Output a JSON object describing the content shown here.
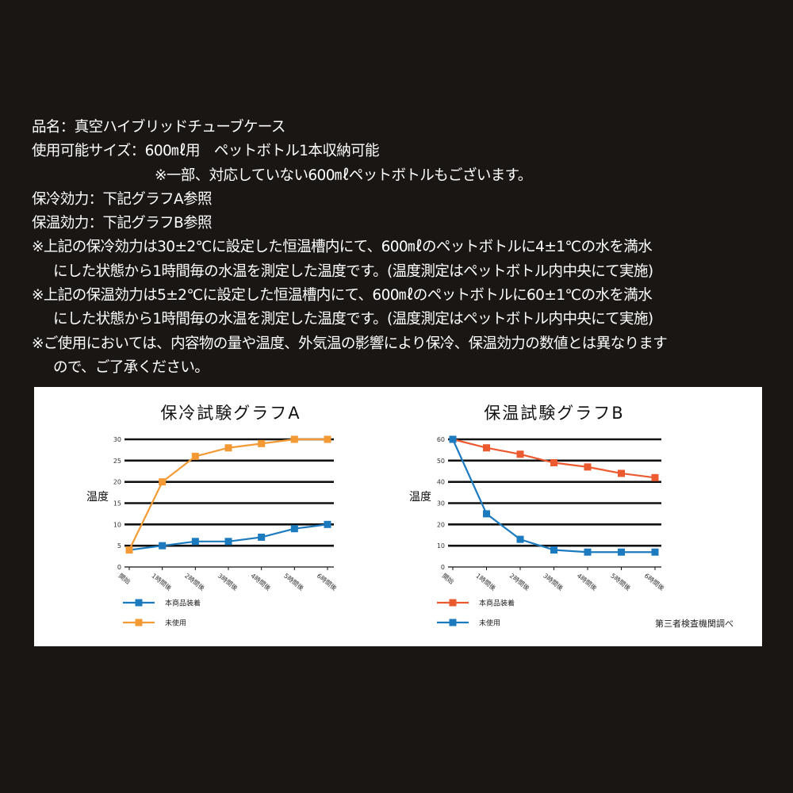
{
  "specs": {
    "product_line": "品名：真空ハイブリッドチューブケース",
    "size_line": "使用可能サイズ：600㎖用　ペットボトル1本収納可能",
    "size_note": "※一部、対応していない600㎖ペットボトルもございます。",
    "cold_line": "保冷効力：下記グラフA参照",
    "warm_line": "保温効力：下記グラフB参照",
    "note_cold_1": "※上記の保冷効力は30±2℃に設定した恒温槽内にて、600㎖のペットボトルに4±1℃の水を満水",
    "note_cold_2": "にした状態から1時間毎の水温を測定した温度です。(温度測定はペットボトル内中央にて実施)",
    "note_warm_1": "※上記の保温効力は5±2℃に設定した恒温槽内にて、600㎖のペットボトルに60±1℃の水を満水",
    "note_warm_2": "にした状態から1時間毎の水温を測定した温度です。(温度測定はペットボトル内中央にて実施)",
    "note_usage_1": "※ご使用においては、内容物の量や温度、外気温の影響により保冷、保温効力の数値とは異なります",
    "note_usage_2": "ので、ご了承ください。"
  },
  "source_note": "第三者検査機関調べ",
  "chart_data": [
    {
      "type": "line",
      "title": "保冷試験グラフA",
      "ylabel": "温度",
      "xlabel": "",
      "categories": [
        "開始",
        "1時間後",
        "2時間後",
        "3時間後",
        "4時間後",
        "5時間後",
        "6時間後"
      ],
      "ylim": [
        0,
        30
      ],
      "yticks": [
        0,
        5,
        10,
        15,
        20,
        25,
        30
      ],
      "grid": true,
      "legend": "bottom-left",
      "series": [
        {
          "name": "本商品装着",
          "color": "#1c7bbf",
          "values": [
            4,
            5,
            6,
            6,
            7,
            9,
            10
          ]
        },
        {
          "name": "未使用",
          "color": "#f39a35",
          "values": [
            4,
            20,
            26,
            28,
            29,
            30,
            30
          ]
        }
      ]
    },
    {
      "type": "line",
      "title": "保温試験グラフB",
      "ylabel": "温度",
      "xlabel": "",
      "categories": [
        "開始",
        "1時間後",
        "2時間後",
        "3時間後",
        "4時間後",
        "5時間後",
        "6時間後"
      ],
      "ylim": [
        0,
        60
      ],
      "yticks": [
        0,
        10,
        20,
        30,
        40,
        50,
        60
      ],
      "grid": true,
      "legend": "bottom-left",
      "series": [
        {
          "name": "本商品装着",
          "color": "#ec5a30",
          "values": [
            60,
            56,
            53,
            49,
            47,
            44,
            42
          ]
        },
        {
          "name": "未使用",
          "color": "#1c7bbf",
          "values": [
            60,
            25,
            13,
            8,
            7,
            7,
            7
          ]
        }
      ]
    }
  ]
}
